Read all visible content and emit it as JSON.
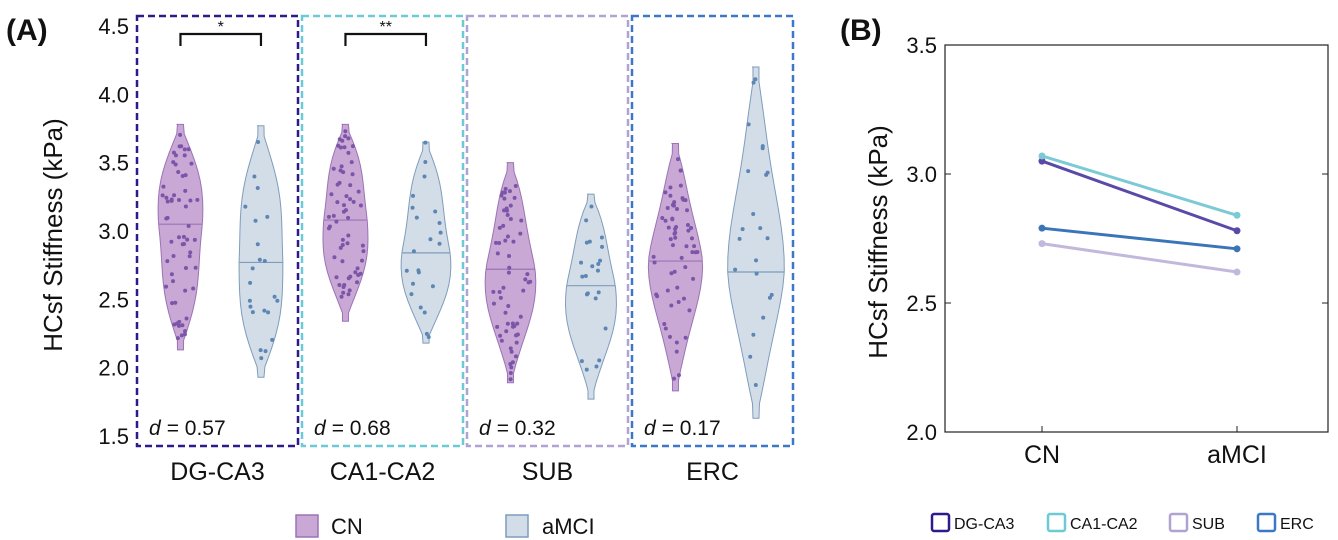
{
  "panels": {
    "a_label": "(A)",
    "b_label": "(B)"
  },
  "chart_data": [
    {
      "type": "violin",
      "ylabel": "HCsf Stiffness (kPa)",
      "ylim": [
        1.5,
        4.5
      ],
      "yticks": [
        "1.5",
        "2.0",
        "2.5",
        "3.0",
        "3.5",
        "4.0",
        "4.5"
      ],
      "groups": [
        "CN",
        "aMCI"
      ],
      "group_colors": {
        "CN": "#c9a8d6",
        "aMCI": "#d3dde8"
      },
      "group_strokes": {
        "CN": "#9b73b6",
        "aMCI": "#7f9cbc"
      },
      "dot_colors": {
        "CN": "#7b55a8",
        "aMCI": "#5c86b3"
      },
      "regions": [
        {
          "name": "DG-CA3",
          "box_color": "#2e1a8a",
          "d_label": "d",
          "d_value": "= 0.57",
          "sig": "*",
          "CN": {
            "median": 3.05,
            "min": 2.13,
            "max": 3.78
          },
          "aMCI": {
            "median": 2.77,
            "min": 1.93,
            "max": 3.77
          }
        },
        {
          "name": "CA1-CA2",
          "box_color": "#6cc9d6",
          "d_label": "d",
          "d_value": "= 0.68",
          "sig": "**",
          "CN": {
            "median": 3.08,
            "min": 2.34,
            "max": 3.78
          },
          "aMCI": {
            "median": 2.84,
            "min": 2.18,
            "max": 3.65
          }
        },
        {
          "name": "SUB",
          "box_color": "#b0a3d3",
          "d_label": "d",
          "d_value": "= 0.32",
          "sig": "",
          "CN": {
            "median": 2.72,
            "min": 1.89,
            "max": 3.5
          },
          "aMCI": {
            "median": 2.6,
            "min": 1.77,
            "max": 3.27
          }
        },
        {
          "name": "ERC",
          "box_color": "#3b78c8",
          "d_label": "d",
          "d_value": "= 0.17",
          "sig": "",
          "CN": {
            "median": 2.78,
            "min": 1.83,
            "max": 3.64
          },
          "aMCI": {
            "median": 2.7,
            "min": 1.63,
            "max": 4.2
          }
        }
      ],
      "legend": [
        {
          "label": "CN",
          "color": "#c9a8d6",
          "stroke": "#9b73b6"
        },
        {
          "label": "aMCI",
          "color": "#d3dde8",
          "stroke": "#7f9cbc"
        }
      ]
    },
    {
      "type": "line",
      "ylabel": "HCsf Stiffness (kPa)",
      "ylim": [
        2.0,
        3.5
      ],
      "yticks": [
        "2.0",
        "2.5",
        "3.0",
        "3.5"
      ],
      "categories": [
        "CN",
        "aMCI"
      ],
      "series": [
        {
          "name": "DG-CA3",
          "color": "#5a4aa8",
          "values": [
            3.05,
            2.78
          ]
        },
        {
          "name": "CA1-CA2",
          "color": "#7ccad6",
          "values": [
            3.07,
            2.84
          ]
        },
        {
          "name": "SUB",
          "color": "#c2b8dc",
          "values": [
            2.73,
            2.62
          ]
        },
        {
          "name": "ERC",
          "color": "#3a75b8",
          "values": [
            2.79,
            2.71
          ]
        }
      ],
      "legend": [
        {
          "label": "DG-CA3",
          "color": "#2e1a8a"
        },
        {
          "label": "CA1-CA2",
          "color": "#6cc9d6"
        },
        {
          "label": "SUB",
          "color": "#b0a3d3"
        },
        {
          "label": "ERC",
          "color": "#3b78c8"
        }
      ]
    }
  ]
}
